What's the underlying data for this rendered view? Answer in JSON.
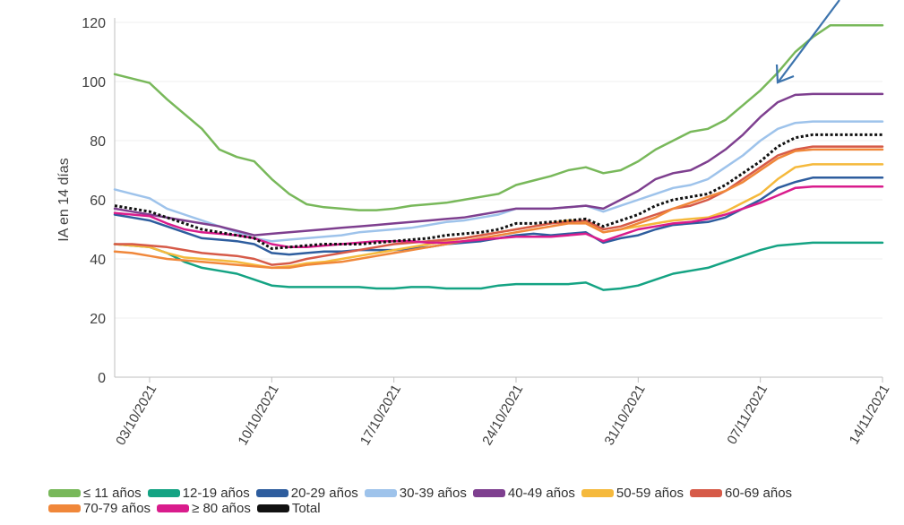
{
  "chart_data": {
    "type": "line",
    "ylabel": "IA en 14 días",
    "xlabel": "",
    "ylim": [
      0,
      120
    ],
    "y_ticks": [
      "0",
      "20",
      "40",
      "60",
      "80",
      "100",
      "120"
    ],
    "x_tick_labels": [
      "03/10/2021",
      "10/10/2021",
      "17/10/2021",
      "24/10/2021",
      "31/10/2021",
      "07/11/2021",
      "14/11/2021"
    ],
    "x_tick_index": [
      2,
      9,
      16,
      23,
      30,
      37,
      44
    ],
    "x_count": 45,
    "annotation": "arrow",
    "series": [
      {
        "name": "≤ 11 años",
        "color": "#78b85a",
        "width": 2.5,
        "values": [
          102.5,
          101,
          99.5,
          94,
          89,
          84,
          77,
          74.5,
          73,
          67,
          62,
          58.5,
          57.5,
          57,
          56.5,
          56.5,
          57,
          58,
          58.5,
          59,
          60,
          61,
          62,
          65,
          66.5,
          68,
          70,
          71,
          69,
          70,
          73,
          77,
          80,
          83,
          84,
          87,
          92,
          97,
          103,
          110,
          115,
          119,
          119,
          119,
          119
        ]
      },
      {
        "name": "12-19 años",
        "color": "#14a383",
        "width": 2.5,
        "values": [
          45,
          44.5,
          44,
          42,
          39,
          37,
          36,
          35,
          33,
          31,
          30.5,
          30.5,
          30.5,
          30.5,
          30.5,
          30,
          30,
          30.5,
          30.5,
          30,
          30,
          30,
          31,
          31.5,
          31.5,
          31.5,
          31.5,
          32,
          29.5,
          30,
          31,
          33,
          35,
          36,
          37,
          39,
          41,
          43,
          44.5,
          45,
          45.5,
          45.5,
          45.5,
          45.5,
          45.5
        ]
      },
      {
        "name": "20-29 años",
        "color": "#2e5d9e",
        "width": 2.5,
        "values": [
          55,
          54,
          53,
          51,
          49,
          47,
          46.5,
          46,
          45,
          42,
          41.5,
          42,
          42.5,
          42.5,
          43,
          43,
          43,
          43.5,
          44,
          45,
          45.5,
          46,
          47,
          48,
          48.5,
          48,
          48.5,
          49,
          45.5,
          47,
          48,
          50,
          51.5,
          52,
          52.5,
          54,
          57,
          60,
          64,
          66,
          67.5,
          67.5,
          67.5,
          67.5,
          67.5
        ]
      },
      {
        "name": "30-39 años",
        "color": "#9ec3eb",
        "width": 2.5,
        "values": [
          63.5,
          62,
          60.5,
          57,
          55,
          53,
          51,
          49,
          47,
          46,
          46.5,
          47,
          47.5,
          48,
          49,
          49.5,
          50,
          50.5,
          51.5,
          52.5,
          53,
          54,
          55,
          57,
          57,
          57,
          57.5,
          58,
          56,
          58,
          60,
          62,
          64,
          65,
          67,
          71,
          75,
          80,
          84,
          86,
          86.5,
          86.5,
          86.5,
          86.5,
          86.5
        ]
      },
      {
        "name": "40-49 años",
        "color": "#7e3f8f",
        "width": 2.5,
        "values": [
          57,
          56,
          55,
          54,
          53,
          52,
          51,
          49.5,
          48,
          48.5,
          49,
          49.5,
          50,
          50.5,
          51,
          51.5,
          52,
          52.5,
          53,
          53.5,
          54,
          55,
          56,
          57,
          57,
          57,
          57.5,
          58,
          57,
          60,
          63,
          67,
          69,
          70,
          73,
          77,
          82,
          88,
          93,
          95.5,
          95.8,
          95.8,
          95.8,
          95.8,
          95.8
        ]
      },
      {
        "name": "50-59 años",
        "color": "#f5b93c",
        "width": 2.5,
        "values": [
          45,
          44.5,
          44,
          42,
          40.5,
          40,
          39.5,
          39,
          38,
          37,
          37.5,
          38.5,
          39,
          40,
          41,
          42,
          43,
          44,
          45,
          46,
          47,
          48,
          49,
          50,
          51,
          52,
          53,
          52.5,
          49,
          50,
          51,
          52,
          53,
          53.5,
          54,
          56,
          59,
          62,
          67,
          71,
          72,
          72,
          72,
          72,
          72
        ]
      },
      {
        "name": "60-69 años",
        "color": "#d65a48",
        "width": 2.5,
        "values": [
          45,
          45,
          44.5,
          44,
          43,
          42,
          41.5,
          41,
          40,
          38,
          38.5,
          40,
          41,
          42,
          43,
          44,
          45,
          45.5,
          46,
          46.5,
          47,
          48,
          49,
          50,
          51,
          52,
          52.5,
          53,
          50,
          51,
          53,
          55,
          57,
          58,
          60,
          63,
          67,
          71,
          75,
          77,
          78,
          78,
          78,
          78,
          78
        ]
      },
      {
        "name": "70-79 años",
        "color": "#f0873a",
        "width": 2.5,
        "values": [
          42.5,
          42,
          41,
          40,
          39.5,
          39,
          38.5,
          38,
          37.5,
          37,
          37,
          38,
          38.5,
          39,
          40,
          41,
          42,
          43,
          44,
          45,
          46,
          47,
          48,
          49,
          50,
          51,
          52,
          52,
          49,
          50,
          52,
          54,
          57,
          59,
          61,
          63,
          66,
          70,
          74,
          76.5,
          77,
          77,
          77,
          77,
          77
        ]
      },
      {
        "name": "≥ 80 años",
        "color": "#d91c8c",
        "width": 2.5,
        "values": [
          55.5,
          55,
          54.5,
          52,
          50,
          49,
          48.5,
          48,
          47,
          45,
          44,
          44,
          44.5,
          45,
          45.5,
          46,
          46,
          46,
          45.5,
          45.5,
          46,
          46.5,
          47,
          47.5,
          47.5,
          47.5,
          48,
          48.5,
          46,
          48,
          50,
          51,
          52,
          52.5,
          53.5,
          55,
          57,
          59,
          61.5,
          64,
          64.5,
          64.5,
          64.5,
          64.5,
          64.5
        ]
      },
      {
        "name": "Total",
        "color": "#111111",
        "width": 3,
        "dashed": true,
        "values": [
          58,
          57,
          56,
          54,
          52,
          50,
          49,
          48,
          47,
          43.5,
          44,
          44.5,
          45,
          45,
          45,
          45.5,
          46,
          46.5,
          47,
          48,
          48.5,
          49,
          50,
          52,
          52,
          52.5,
          53,
          53.5,
          51,
          53,
          55,
          58,
          60,
          61,
          62,
          65,
          69,
          73,
          78,
          81,
          82,
          82,
          82,
          82,
          82
        ]
      }
    ]
  }
}
